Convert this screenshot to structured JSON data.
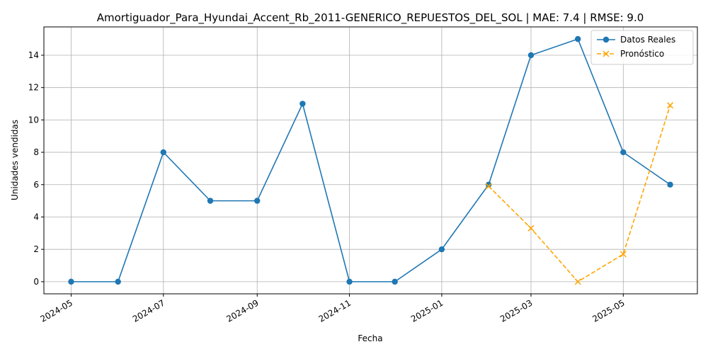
{
  "chart_data": {
    "type": "line",
    "title": "Amortiguador_Para_Hyundai_Accent_Rb_2011-GENERICO_REPUESTOS_DEL_SOL | MAE: 7.4 | RMSE: 9.0",
    "xlabel": "Fecha",
    "ylabel": "Unidades vendidas",
    "x_tick_labels": [
      "2024-05",
      "2024-07",
      "2024-09",
      "2024-11",
      "2025-01",
      "2025-03",
      "2025-05"
    ],
    "y_ticks": [
      0,
      2,
      4,
      6,
      8,
      10,
      12,
      14
    ],
    "ylim": [
      -0.75,
      15.75
    ],
    "xlim": [
      "2024-04-13",
      "2025-06-19"
    ],
    "grid": true,
    "legend_position": "top-right",
    "series": [
      {
        "name": "Datos Reales",
        "color": "#1f77b4",
        "marker": "circle",
        "linestyle": "solid",
        "x": [
          "2024-05-01",
          "2024-06-01",
          "2024-07-01",
          "2024-08-01",
          "2024-09-01",
          "2024-10-01",
          "2024-11-01",
          "2024-12-01",
          "2025-01-01",
          "2025-02-01",
          "2025-03-01",
          "2025-04-01",
          "2025-05-01",
          "2025-06-01"
        ],
        "values": [
          0,
          0,
          8,
          5,
          5,
          11,
          0,
          0,
          2,
          6,
          14,
          15,
          8,
          6
        ]
      },
      {
        "name": "Pronóstico",
        "color": "#ffa500",
        "marker": "x",
        "linestyle": "dashed",
        "x": [
          "2025-02-01",
          "2025-03-01",
          "2025-04-01",
          "2025-05-01",
          "2025-06-01"
        ],
        "values": [
          5.9,
          3.3,
          0.0,
          1.7,
          10.9
        ]
      }
    ]
  }
}
